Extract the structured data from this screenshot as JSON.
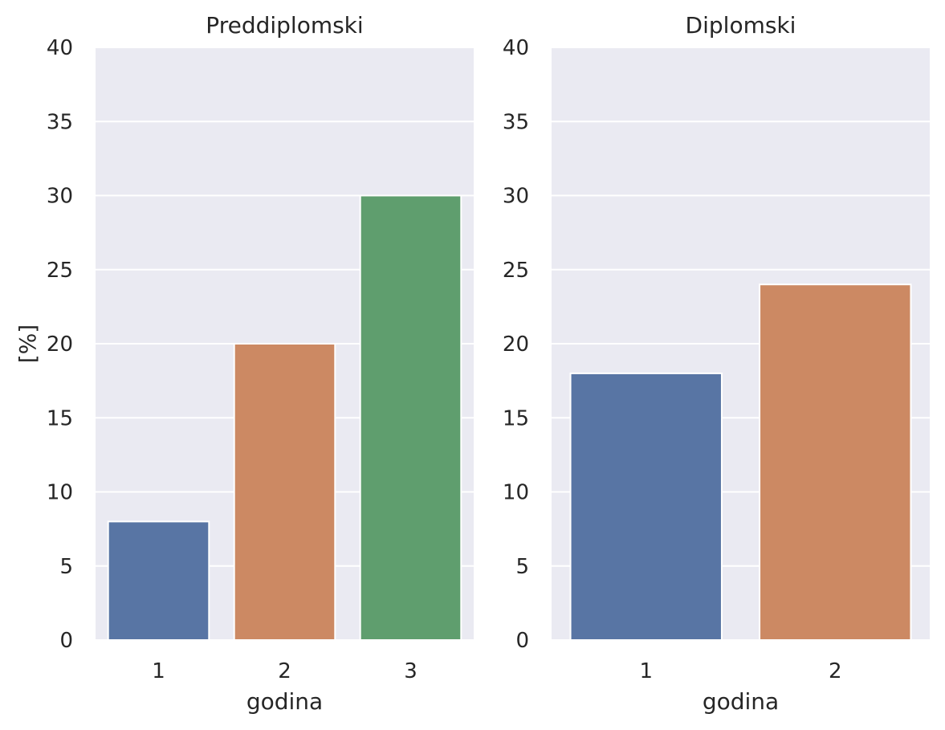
{
  "chart_data": [
    {
      "type": "bar",
      "title": "Preddiplomski",
      "xlabel": "godina",
      "ylabel": "[%]",
      "categories": [
        "1",
        "2",
        "3"
      ],
      "values": [
        8,
        20,
        30
      ],
      "colors": [
        "#5875a4",
        "#cc8963",
        "#5f9e6e"
      ],
      "ylim": [
        0,
        40
      ],
      "yticks": [
        0,
        5,
        10,
        15,
        20,
        25,
        30,
        35,
        40
      ],
      "grid": true,
      "legend": "none"
    },
    {
      "type": "bar",
      "title": "Diplomski",
      "xlabel": "godina",
      "ylabel": "",
      "categories": [
        "1",
        "2"
      ],
      "values": [
        18,
        24
      ],
      "colors": [
        "#5875a4",
        "#cc8963"
      ],
      "ylim": [
        0,
        40
      ],
      "yticks": [
        0,
        5,
        10,
        15,
        20,
        25,
        30,
        35,
        40
      ],
      "grid": true,
      "legend": "none"
    }
  ],
  "style": {
    "plot_background": "#eaeaf2",
    "grid_color": "#ffffff"
  }
}
